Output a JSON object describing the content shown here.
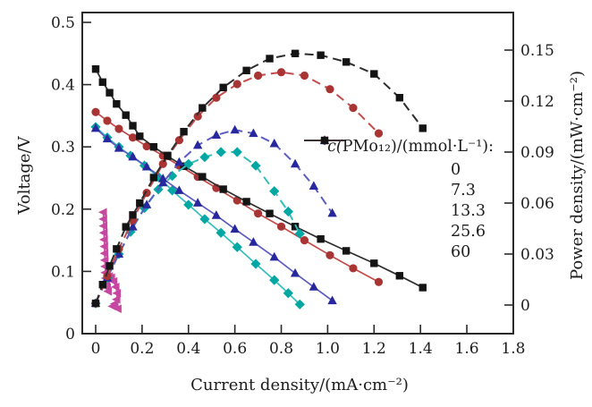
{
  "chart_data": {
    "type": "line",
    "title": "",
    "xlabel": "Current density/(mA·cm⁻²)",
    "ylabel_left": "Voltage/V",
    "ylabel_right": "Power density/(mW·cm⁻²)",
    "axes": {
      "x": {
        "ticks": [
          "0",
          "0.2",
          "0.4",
          "0.6",
          "0.8",
          "1.0",
          "1.2",
          "1.4",
          "1.6",
          "1.8"
        ],
        "range": [
          0,
          1.8
        ],
        "grid": false
      },
      "y_left": {
        "ticks": [
          "0",
          "0.1",
          "0.2",
          "0.3",
          "0.4",
          "0.5"
        ],
        "range": [
          0,
          0.5
        ],
        "grid": false
      },
      "y_right": {
        "ticks": [
          "0",
          "0.03",
          "0.06",
          "0.09",
          "0.12",
          "0.15"
        ],
        "range": [
          0,
          0.15
        ],
        "grid": false
      }
    },
    "legend": {
      "title": "c(PMo₁₂)/(mmol·L⁻¹):",
      "position": "right-center",
      "entries": [
        "0",
        "7.3",
        "13.3",
        "25.6",
        "60"
      ]
    },
    "series": [
      {
        "label": "0",
        "role": "voltage",
        "axis": "left",
        "marker": "triangle-left",
        "line_style": "solid",
        "line_color": "#c6479f",
        "marker_color": "#c6479f",
        "x": [
          0.033,
          0.034,
          0.035,
          0.036,
          0.037,
          0.038,
          0.039,
          0.04,
          0.041,
          0.042,
          0.044,
          0.047,
          0.05,
          0.054,
          0.059,
          0.068,
          0.078,
          0.087,
          0.093,
          0.091,
          0.083,
          0.073,
          0.096
        ],
        "y": [
          0.195,
          0.184,
          0.173,
          0.162,
          0.151,
          0.14,
          0.129,
          0.118,
          0.108,
          0.098,
          0.089,
          0.081,
          0.074,
          0.068,
          0.092,
          0.09,
          0.084,
          0.075,
          0.065,
          0.055,
          0.048,
          0.044,
          0.04
        ]
      },
      {
        "label": "7.3",
        "role": "voltage",
        "axis": "left",
        "marker": "diamond",
        "line_style": "solid",
        "line_color": "#35bdbd",
        "marker_color": "#00a7a3",
        "x": [
          0,
          0.05,
          0.1,
          0.15,
          0.21,
          0.27,
          0.33,
          0.4,
          0.47,
          0.54,
          0.61,
          0.69,
          0.77,
          0.83,
          0.88
        ],
        "y": [
          0.332,
          0.315,
          0.3,
          0.286,
          0.27,
          0.252,
          0.23,
          0.207,
          0.184,
          0.162,
          0.139,
          0.112,
          0.086,
          0.065,
          0.047
        ]
      },
      {
        "label": "13.3",
        "role": "voltage",
        "axis": "left",
        "marker": "triangle-up",
        "line_style": "solid",
        "line_color": "#5b5bc0",
        "marker_color": "#28289e",
        "x": [
          0,
          0.05,
          0.1,
          0.16,
          0.22,
          0.29,
          0.36,
          0.44,
          0.52,
          0.6,
          0.68,
          0.77,
          0.86,
          0.94,
          1.02
        ],
        "y": [
          0.33,
          0.313,
          0.298,
          0.284,
          0.268,
          0.249,
          0.23,
          0.21,
          0.19,
          0.168,
          0.147,
          0.123,
          0.097,
          0.075,
          0.053
        ]
      },
      {
        "label": "25.6",
        "role": "voltage",
        "axis": "left",
        "marker": "circle",
        "line_style": "solid",
        "line_color": "#c44b4b",
        "marker_color": "#a93434",
        "x": [
          0,
          0.05,
          0.1,
          0.16,
          0.22,
          0.29,
          0.36,
          0.44,
          0.52,
          0.61,
          0.7,
          0.8,
          0.9,
          1.01,
          1.11,
          1.22
        ],
        "y": [
          0.356,
          0.342,
          0.329,
          0.315,
          0.301,
          0.286,
          0.27,
          0.252,
          0.234,
          0.214,
          0.193,
          0.172,
          0.15,
          0.126,
          0.105,
          0.083
        ]
      },
      {
        "label": "60",
        "role": "voltage",
        "axis": "left",
        "marker": "square",
        "line_style": "solid",
        "line_color": "#2d2d2d",
        "marker_color": "#141414",
        "x": [
          0,
          0.03,
          0.06,
          0.09,
          0.13,
          0.16,
          0.19,
          0.25,
          0.31,
          0.38,
          0.46,
          0.55,
          0.65,
          0.75,
          0.86,
          0.97,
          1.08,
          1.2,
          1.31,
          1.41
        ],
        "y": [
          0.425,
          0.404,
          0.387,
          0.369,
          0.351,
          0.334,
          0.317,
          0.3,
          0.285,
          0.269,
          0.252,
          0.232,
          0.212,
          0.193,
          0.172,
          0.152,
          0.133,
          0.113,
          0.093,
          0.074
        ]
      },
      {
        "label": "7.3",
        "role": "power",
        "axis": "right",
        "marker": "diamond",
        "line_style": "dashed",
        "line_color": "#35bdbd",
        "marker_color": "#00a7a3",
        "x": [
          0,
          0.05,
          0.1,
          0.15,
          0.21,
          0.27,
          0.33,
          0.4,
          0.47,
          0.54,
          0.61,
          0.69,
          0.77,
          0.83,
          0.88
        ],
        "y": [
          0.001,
          0.016,
          0.03,
          0.043,
          0.057,
          0.068,
          0.076,
          0.083,
          0.087,
          0.09,
          0.09,
          0.082,
          0.067,
          0.055,
          0.042
        ]
      },
      {
        "label": "13.3",
        "role": "power",
        "axis": "right",
        "marker": "triangle-up",
        "line_style": "dashed",
        "line_color": "#5b5bc0",
        "marker_color": "#28289e",
        "x": [
          0,
          0.05,
          0.1,
          0.16,
          0.22,
          0.29,
          0.36,
          0.44,
          0.52,
          0.6,
          0.68,
          0.77,
          0.86,
          0.94,
          1.02
        ],
        "y": [
          0.001,
          0.016,
          0.03,
          0.046,
          0.059,
          0.072,
          0.084,
          0.094,
          0.1,
          0.103,
          0.101,
          0.095,
          0.083,
          0.07,
          0.054
        ]
      },
      {
        "label": "25.6",
        "role": "power",
        "axis": "right",
        "marker": "circle",
        "line_style": "dashed",
        "line_color": "#c44b4b",
        "marker_color": "#a93434",
        "x": [
          0,
          0.05,
          0.1,
          0.16,
          0.22,
          0.29,
          0.36,
          0.44,
          0.52,
          0.61,
          0.7,
          0.8,
          0.9,
          1.01,
          1.11,
          1.22
        ],
        "y": [
          0.001,
          0.017,
          0.033,
          0.05,
          0.066,
          0.083,
          0.097,
          0.111,
          0.122,
          0.13,
          0.135,
          0.137,
          0.135,
          0.127,
          0.116,
          0.101
        ]
      },
      {
        "label": "60",
        "role": "power",
        "axis": "right",
        "marker": "square",
        "line_style": "dashed",
        "line_color": "#2d2d2d",
        "marker_color": "#141414",
        "x": [
          0,
          0.03,
          0.06,
          0.09,
          0.13,
          0.16,
          0.19,
          0.25,
          0.31,
          0.38,
          0.46,
          0.55,
          0.65,
          0.75,
          0.86,
          0.97,
          1.08,
          1.2,
          1.31,
          1.41
        ],
        "y": [
          0.001,
          0.012,
          0.023,
          0.033,
          0.046,
          0.053,
          0.06,
          0.075,
          0.088,
          0.102,
          0.116,
          0.128,
          0.138,
          0.145,
          0.148,
          0.147,
          0.143,
          0.136,
          0.122,
          0.104
        ]
      }
    ]
  }
}
